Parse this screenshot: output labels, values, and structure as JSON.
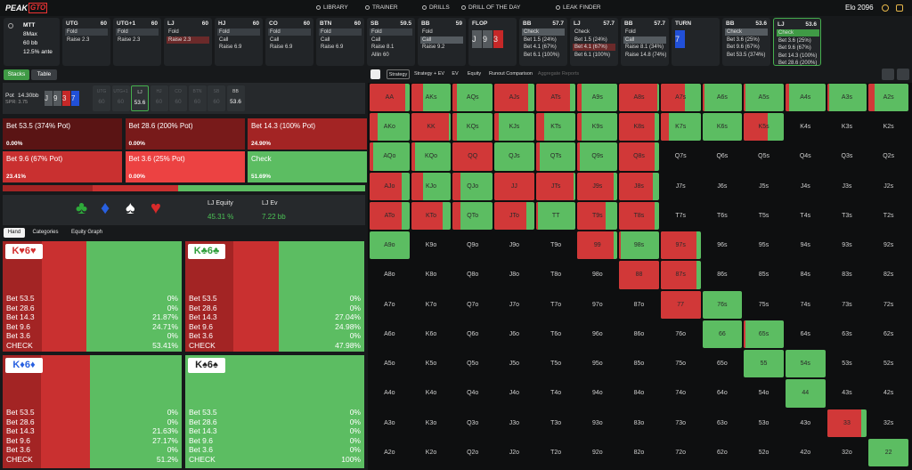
{
  "nav": {
    "logo": [
      "PEAK",
      "GTO"
    ],
    "items": [
      "LIBRARY",
      "TRAINER",
      "DRILLS",
      "DRILL OF THE DAY",
      "LEAK FINDER"
    ],
    "elo": "Elo 2096"
  },
  "game": {
    "format": "MTT",
    "players": "8Max",
    "stack": "60 bb",
    "ante": "12.5% ante"
  },
  "history": [
    {
      "seat": "UTG",
      "stack": "60",
      "actions": [
        "Fold",
        "Raise 2.3"
      ],
      "highlight": 0,
      "highlight_color": "#3a3f44"
    },
    {
      "seat": "UTG+1",
      "stack": "60",
      "actions": [
        "Fold",
        "Raise 2.3"
      ],
      "highlight": 0,
      "highlight_color": "#3a3f44"
    },
    {
      "seat": "LJ",
      "stack": "60",
      "actions": [
        "Fold",
        "Raise 2.3"
      ],
      "highlight": 1,
      "highlight_color": "#6b2a2a"
    },
    {
      "seat": "HJ",
      "stack": "60",
      "actions": [
        "Fold",
        "Call",
        "Raise 6.9"
      ],
      "highlight": 0,
      "highlight_color": "#3a3f44"
    },
    {
      "seat": "CO",
      "stack": "60",
      "actions": [
        "Fold",
        "Call",
        "Raise 6.9"
      ],
      "highlight": 0,
      "highlight_color": "#3a3f44"
    },
    {
      "seat": "BTN",
      "stack": "60",
      "actions": [
        "Fold",
        "Call",
        "Raise 6.9"
      ],
      "highlight": 0,
      "highlight_color": "#3a3f44"
    },
    {
      "seat": "SB",
      "stack": "59.5",
      "actions": [
        "Fold",
        "Call",
        "Raise 8.1",
        "Allin 60"
      ],
      "highlight": 0,
      "highlight_color": "#3a3f44"
    },
    {
      "seat": "BB",
      "stack": "59",
      "actions": [
        "Fold",
        "Call",
        "Raise 9.2"
      ],
      "highlight": 1,
      "highlight_color": "#555b60"
    },
    {
      "street": "FLOP",
      "cards": [
        {
          "rank": "J",
          "color": "#555a5e"
        },
        {
          "rank": "9",
          "color": "#555a5e"
        },
        {
          "rank": "3",
          "color": "#c62828"
        }
      ]
    },
    {
      "seat": "BB",
      "stack": "57.7",
      "actions": [
        "Check",
        "Bet 1.5 (24%)",
        "Bet 4.1 (67%)",
        "Bet 6.1 (100%)"
      ],
      "highlight": 0,
      "highlight_color": "#555b60"
    },
    {
      "seat": "LJ",
      "stack": "57.7",
      "actions": [
        "Check",
        "Bet 1.5 (24%)",
        "Bet 4.1 (67%)",
        "Bet 6.1 (100%)"
      ],
      "highlight": 2,
      "highlight_color": "#6b2a2a"
    },
    {
      "seat": "BB",
      "stack": "57.7",
      "actions": [
        "Fold",
        "Call",
        "Raise 8.1 (34%)",
        "Raise 14.8 (74%)"
      ],
      "highlight": 1,
      "highlight_color": "#555b60"
    },
    {
      "street": "TURN",
      "cards": [
        {
          "rank": "7",
          "color": "#2150d8"
        }
      ]
    },
    {
      "seat": "BB",
      "stack": "53.6",
      "actions": [
        "Check",
        "Bet 3.6 (25%)",
        "Bet 9.6 (67%)",
        "Bet 53.5 (374%)"
      ],
      "highlight": 0,
      "highlight_color": "#555b60"
    },
    {
      "seat": "LJ",
      "stack": "53.6",
      "actions": [
        "Check",
        "Bet 3.6 (25%)",
        "Bet 9.6 (67%)",
        "Bet 14.3 (100%)",
        "Bet 28.6 (200%)"
      ],
      "highlight": 0,
      "highlight_color": "#3f9a45",
      "active": true
    }
  ],
  "left_tabs": [
    "Stacks",
    "Table"
  ],
  "pot": {
    "label": "Pot",
    "value": "14.30bb",
    "spr": "SPR: 3.75",
    "cards": [
      {
        "rank": "J",
        "color": "#555a5e"
      },
      {
        "rank": "9",
        "color": "#555a5e"
      },
      {
        "rank": "3",
        "color": "#c62828"
      },
      {
        "rank": "7",
        "color": "#2150d8"
      }
    ],
    "seats": [
      {
        "name": "UTG",
        "stack": "60"
      },
      {
        "name": "UTG+1",
        "stack": "60"
      },
      {
        "name": "LJ",
        "stack": "53.6",
        "active": true
      },
      {
        "name": "HJ",
        "stack": "60"
      },
      {
        "name": "CO",
        "stack": "60"
      },
      {
        "name": "BTN",
        "stack": "60"
      },
      {
        "name": "SB",
        "stack": "60"
      },
      {
        "name": "BB",
        "stack": "53.6",
        "active": true
      }
    ]
  },
  "actions": [
    {
      "label": "Bet 53.5 (374% Pot)",
      "value": 0,
      "value_label": "0.00%",
      "color": "#5a1414"
    },
    {
      "label": "Bet 28.6 (200% Pot)",
      "value": 0,
      "value_label": "0.00%",
      "color": "#781a1a"
    },
    {
      "label": "Bet 14.3 (100% Pot)",
      "value": 24.9,
      "value_label": "24.90%",
      "color": "#a32424"
    },
    {
      "label": "Bet 9.6 (67% Pot)",
      "value": 23.41,
      "value_label": "23.41%",
      "color": "#c93030"
    },
    {
      "label": "Bet 3.6 (25% Pot)",
      "value": 0,
      "value_label": "0.00%",
      "color": "#ec4242"
    },
    {
      "label": "Check",
      "value": 51.69,
      "value_label": "51.69%",
      "color": "#5cbd62"
    }
  ],
  "suits": [
    {
      "symbol": "♣",
      "color": "#2eaa3a"
    },
    {
      "symbol": "♦",
      "color": "#2860e0"
    },
    {
      "symbol": "♠",
      "color": "#ffffff"
    },
    {
      "symbol": "♥",
      "color": "#d82a2a"
    }
  ],
  "equity": {
    "label": "LJ Equity",
    "value": "45.31 %",
    "ev_label": "LJ Ev",
    "ev": "7.22 bb"
  },
  "hand_tabs": [
    "Hand",
    "Categories",
    "Equity Graph"
  ],
  "hands": {
    "rows": [
      "Bet 53.5",
      "Bet 28.6",
      "Bet 14.3",
      "Bet 9.6",
      "Bet 3.6",
      "CHECK"
    ],
    "cards": [
      {
        "title": "K♥6♥",
        "color": "#d32f2f",
        "values": [
          0,
          0,
          21.87,
          24.71,
          0,
          53.41
        ],
        "value_labels": [
          "0%",
          "0%",
          "21.87%",
          "24.71%",
          "0%",
          "53.41%"
        ]
      },
      {
        "title": "K♣6♣",
        "color": "#2e9e3a",
        "values": [
          0,
          0,
          27.04,
          24.98,
          0,
          47.98
        ],
        "value_labels": [
          "0%",
          "0%",
          "27.04%",
          "24.98%",
          "0%",
          "47.98%"
        ]
      },
      {
        "title": "K♦6♦",
        "color": "#2860e0",
        "values": [
          0,
          0,
          21.63,
          27.17,
          0,
          51.2
        ],
        "value_labels": [
          "0%",
          "0%",
          "21.63%",
          "27.17%",
          "0%",
          "51.2%"
        ]
      },
      {
        "title": "K♠6♠",
        "color": "#222222",
        "values": [
          0,
          0,
          0,
          0,
          0,
          100
        ],
        "value_labels": [
          "0%",
          "0%",
          "0%",
          "0%",
          "0%",
          "100%"
        ]
      }
    ]
  },
  "right_tabs": [
    "Strategy",
    "Strategy + EV",
    "EV",
    "Equity",
    "Runout Comparison",
    "Aggregate Reports"
  ],
  "grid": {
    "hands": [
      [
        "AA",
        "AKs",
        "AQs",
        "AJs",
        "ATs",
        "A9s",
        "A8s",
        "A7s",
        "A6s",
        "A5s",
        "A4s",
        "A3s",
        "A2s"
      ],
      [
        "AKo",
        "KK",
        "KQs",
        "KJs",
        "KTs",
        "K9s",
        "K8s",
        "K7s",
        "K6s",
        "K5s",
        "K4s",
        "K3s",
        "K2s"
      ],
      [
        "AQo",
        "KQo",
        "QQ",
        "QJs",
        "QTs",
        "Q9s",
        "Q8s",
        "Q7s",
        "Q6s",
        "Q5s",
        "Q4s",
        "Q3s",
        "Q2s"
      ],
      [
        "AJo",
        "KJo",
        "QJo",
        "JJ",
        "JTs",
        "J9s",
        "J8s",
        "J7s",
        "J6s",
        "J5s",
        "J4s",
        "J3s",
        "J2s"
      ],
      [
        "ATo",
        "KTo",
        "QTo",
        "JTo",
        "TT",
        "T9s",
        "T8s",
        "T7s",
        "T6s",
        "T5s",
        "T4s",
        "T3s",
        "T2s"
      ],
      [
        "A9o",
        "K9o",
        "Q9o",
        "J9o",
        "T9o",
        "99",
        "98s",
        "97s",
        "96s",
        "95s",
        "94s",
        "93s",
        "92s"
      ],
      [
        "A8o",
        "K8o",
        "Q8o",
        "J8o",
        "T8o",
        "98o",
        "88",
        "87s",
        "86s",
        "85s",
        "84s",
        "83s",
        "82s"
      ],
      [
        "A7o",
        "K7o",
        "Q7o",
        "J7o",
        "T7o",
        "97o",
        "87o",
        "77",
        "76s",
        "75s",
        "74s",
        "73s",
        "72s"
      ],
      [
        "A6o",
        "K6o",
        "Q6o",
        "J6o",
        "T6o",
        "96o",
        "86o",
        "76o",
        "66",
        "65s",
        "64s",
        "63s",
        "62s"
      ],
      [
        "A5o",
        "K5o",
        "Q5o",
        "J5o",
        "T5o",
        "95o",
        "85o",
        "75o",
        "65o",
        "55",
        "54s",
        "53s",
        "52s"
      ],
      [
        "A4o",
        "K4o",
        "Q4o",
        "J4o",
        "T4o",
        "94o",
        "84o",
        "74o",
        "64o",
        "54o",
        "44",
        "43s",
        "42s"
      ],
      [
        "A3o",
        "K3o",
        "Q3o",
        "J3o",
        "T3o",
        "93o",
        "83o",
        "73o",
        "63o",
        "53o",
        "43o",
        "33",
        "32s"
      ],
      [
        "A2o",
        "K2o",
        "Q2o",
        "J2o",
        "T2o",
        "92o",
        "82o",
        "72o",
        "62o",
        "52o",
        "42o",
        "32o",
        "22"
      ]
    ],
    "bet": [
      [
        90,
        30,
        10,
        85,
        85,
        10,
        95,
        60,
        5,
        5,
        10,
        5,
        15
      ],
      [
        20,
        95,
        10,
        10,
        20,
        10,
        90,
        20,
        0,
        60,
        null,
        null,
        null
      ],
      [
        10,
        10,
        100,
        0,
        10,
        5,
        90,
        null,
        null,
        null,
        null,
        null,
        null
      ],
      [
        80,
        30,
        20,
        100,
        95,
        90,
        85,
        null,
        null,
        null,
        null,
        null,
        null
      ],
      [
        80,
        80,
        20,
        80,
        5,
        70,
        90,
        null,
        null,
        null,
        null,
        null,
        null
      ],
      [
        0,
        null,
        null,
        null,
        null,
        90,
        5,
        90,
        null,
        null,
        null,
        null,
        null
      ],
      [
        null,
        null,
        null,
        null,
        null,
        null,
        100,
        90,
        null,
        null,
        null,
        null,
        null
      ],
      [
        null,
        null,
        null,
        null,
        null,
        null,
        null,
        100,
        0,
        null,
        null,
        null,
        null
      ],
      [
        null,
        null,
        null,
        null,
        null,
        null,
        null,
        null,
        0,
        5,
        null,
        null,
        null
      ],
      [
        null,
        null,
        null,
        null,
        null,
        null,
        null,
        null,
        null,
        0,
        0,
        null,
        null
      ],
      [
        null,
        null,
        null,
        null,
        null,
        null,
        null,
        null,
        null,
        null,
        0,
        null,
        null
      ],
      [
        null,
        null,
        null,
        null,
        null,
        null,
        null,
        null,
        null,
        null,
        null,
        85,
        null
      ],
      [
        null,
        null,
        null,
        null,
        null,
        null,
        null,
        null,
        null,
        null,
        null,
        null,
        0
      ]
    ],
    "bet_color": "#d13838",
    "check_color": "#5cbd62"
  }
}
